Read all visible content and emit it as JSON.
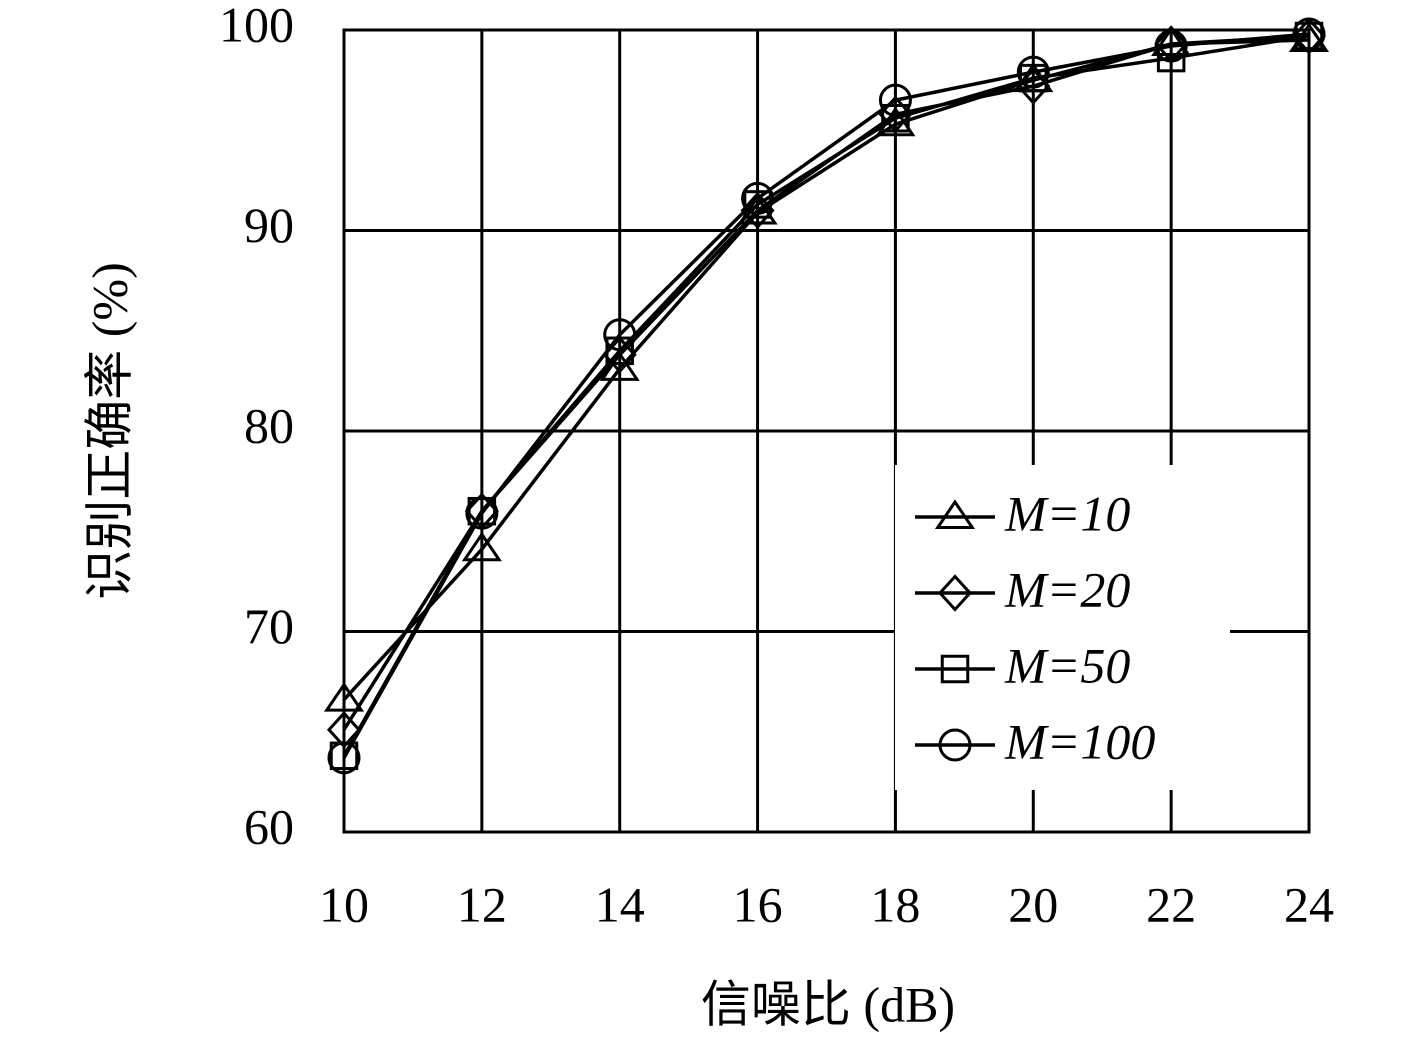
{
  "chart_data": {
    "type": "line",
    "xlabel": "信噪比 (dB)",
    "ylabel": "识别正确率 (%)",
    "x": [
      10,
      12,
      14,
      16,
      18,
      20,
      22,
      24
    ],
    "series": [
      {
        "name": "M=10",
        "color": "#000000",
        "marker": "triangle",
        "values": [
          66.6,
          74.1,
          83.1,
          90.9,
          95.3,
          97.5,
          99.3,
          99.5
        ]
      },
      {
        "name": "M=20",
        "color": "#000000",
        "marker": "diamond",
        "values": [
          65.1,
          76,
          83.8,
          91,
          95.8,
          97.2,
          99.3,
          99.7
        ]
      },
      {
        "name": "M=50",
        "color": "#000000",
        "marker": "square",
        "values": [
          63.8,
          76,
          84,
          91.3,
          95.6,
          97.6,
          98.6,
          99.7
        ]
      },
      {
        "name": "M=100",
        "color": "#000000",
        "marker": "circle",
        "values": [
          63.7,
          75.9,
          84.8,
          91.6,
          96.5,
          97.9,
          99.2,
          99.8
        ]
      }
    ],
    "xlim": [
      10,
      24
    ],
    "xticks": [
      10,
      12,
      14,
      16,
      18,
      20,
      22,
      24
    ],
    "ylim": [
      60,
      100
    ],
    "yticks": [
      60,
      70,
      80,
      90,
      100
    ],
    "grid": true,
    "legend": "lower right"
  }
}
